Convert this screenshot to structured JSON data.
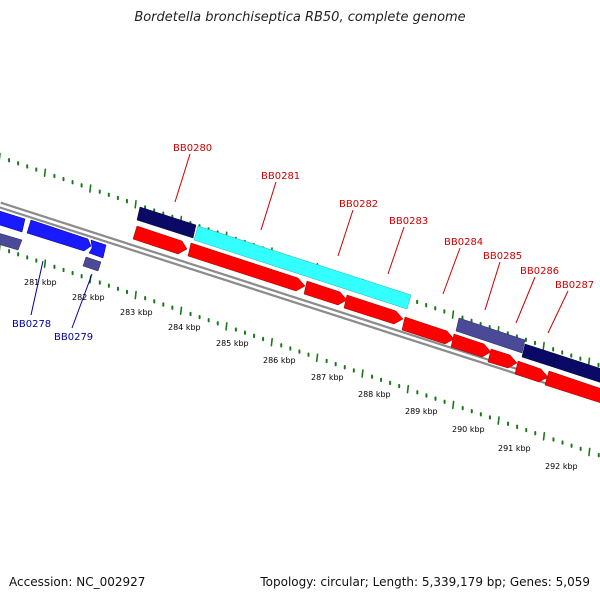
{
  "header": {
    "title": "Bordetella bronchiseptica RB50, complete genome"
  },
  "footer": {
    "accession": "Accession: NC_002927",
    "summary": "Topology: circular; Length: 5,339,179 bp; Genes: 5,059"
  },
  "colors": {
    "backbone": "#8c8c8c",
    "scale_dots": "#1a7a1a",
    "label_forward": "#cc0000",
    "label_reverse": "#000099",
    "cds_forward": "#ff0000",
    "cds_reverse": "#1a1aff",
    "highlight_cds": "#33ffff",
    "dark_gene": "#0a0a66",
    "slate_gene": "#4a4a99"
  },
  "scale": {
    "unit": "kbp",
    "ticks": [
      "281 kbp",
      "282 kbp",
      "283 kbp",
      "284 kbp",
      "285 kbp",
      "286 kbp",
      "287 kbp",
      "288 kbp",
      "289 kbp",
      "290 kbp",
      "291 kbp",
      "292 kbp"
    ]
  },
  "genes": {
    "forward_labels": [
      "BB0280",
      "BB0281",
      "BB0282",
      "BB0283",
      "BB0284",
      "BB0285",
      "BB0286",
      "BB0287"
    ],
    "reverse_labels": [
      "BB0278",
      "BB0279"
    ]
  }
}
